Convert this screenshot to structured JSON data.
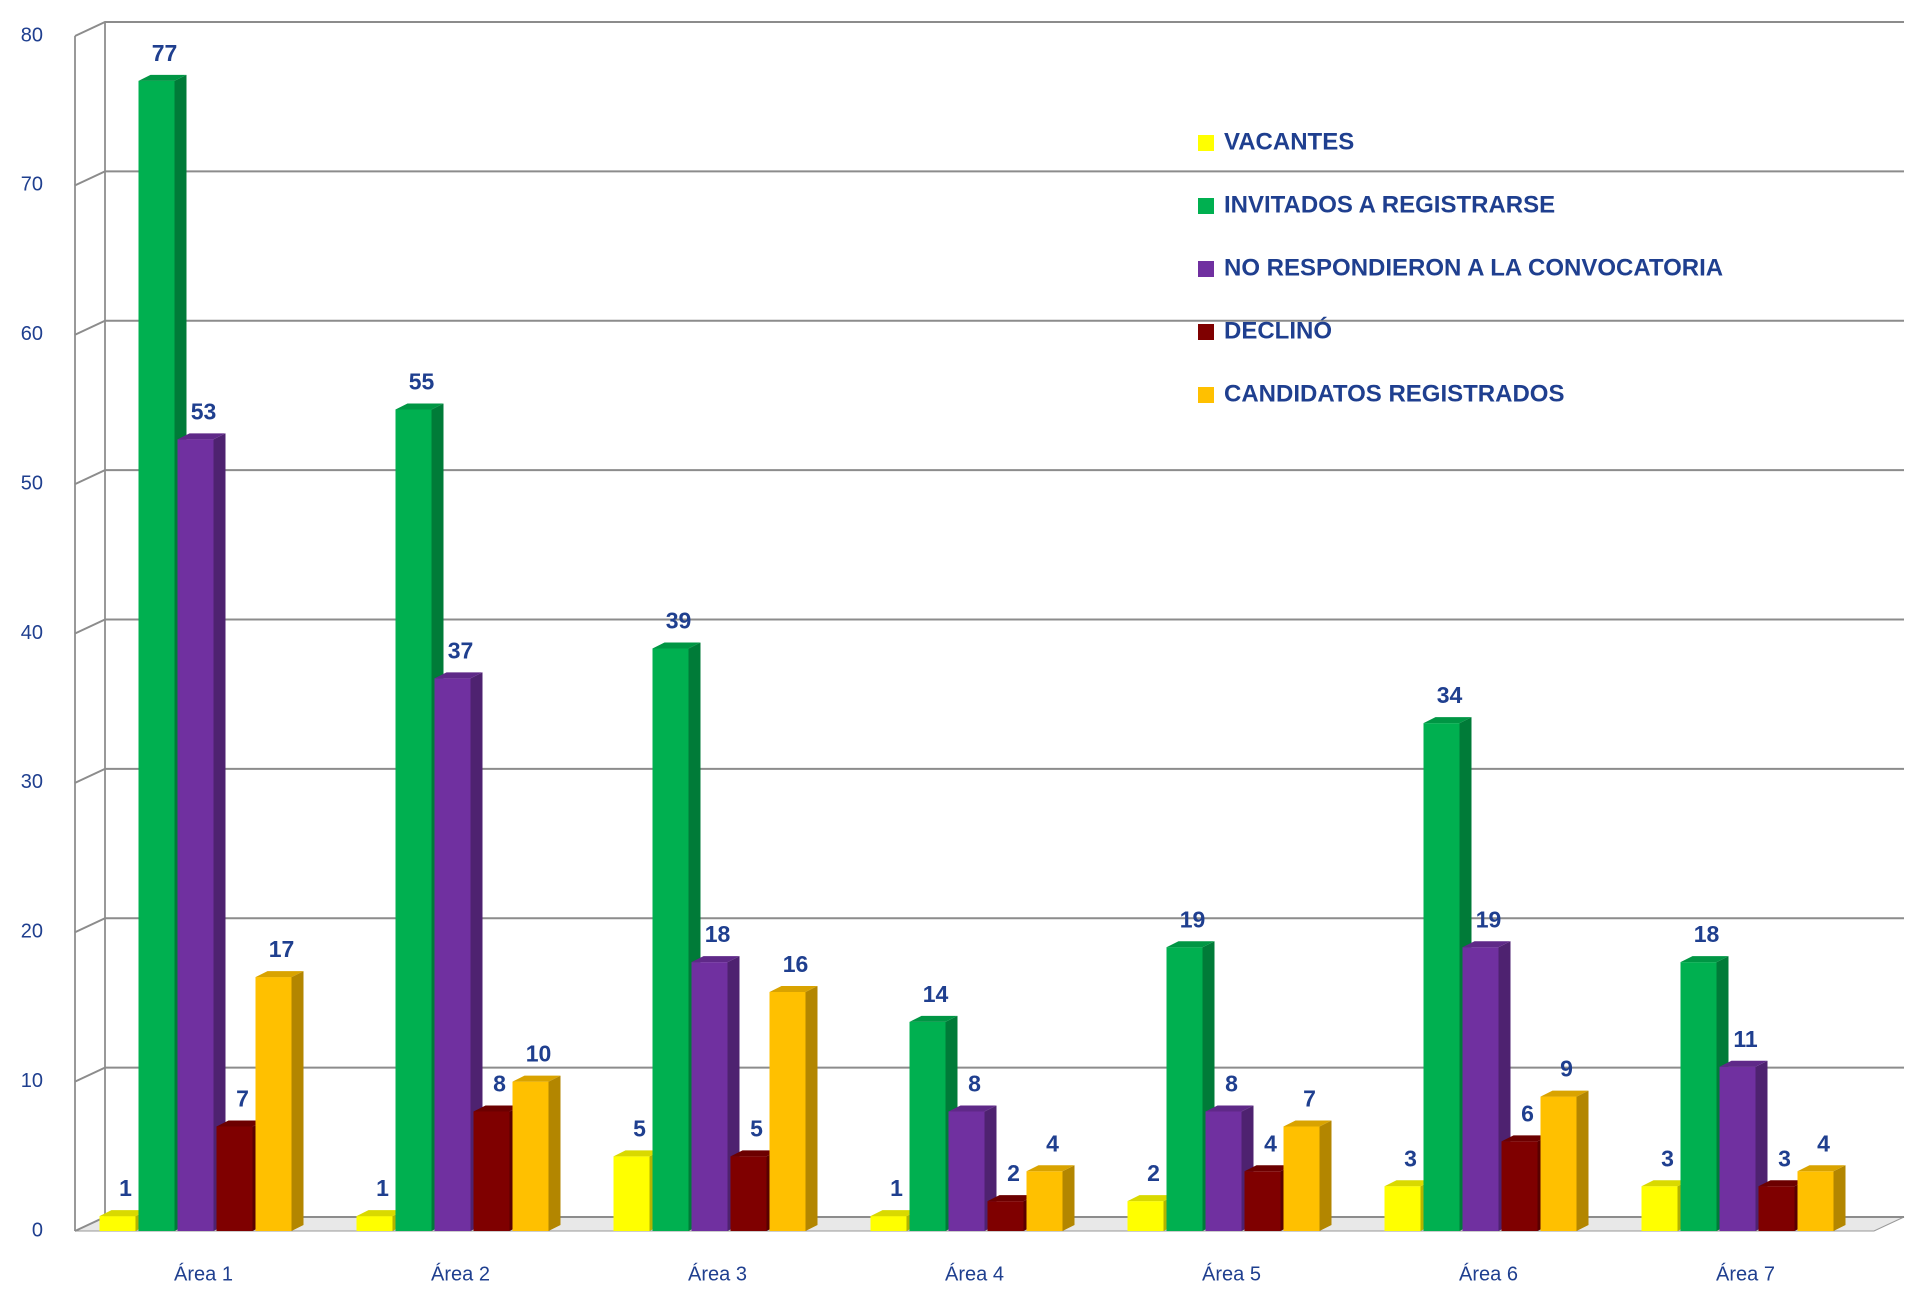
{
  "chart_data": {
    "type": "bar3d",
    "categories": [
      "Área 1",
      "Área 2",
      "Área 3",
      "Área 4",
      "Área 5",
      "Área 6",
      "Área 7"
    ],
    "series": [
      {
        "name": "VACANTES",
        "color": "#ffff00",
        "values": [
          1,
          1,
          5,
          1,
          2,
          3,
          3
        ]
      },
      {
        "name": "INVITADOS A REGISTRARSE",
        "color": "#00b050",
        "values": [
          77,
          55,
          39,
          14,
          19,
          34,
          18
        ]
      },
      {
        "name": "NO RESPONDIERON A LA CONVOCATORIA",
        "color": "#7030a0",
        "values": [
          53,
          37,
          18,
          8,
          8,
          19,
          11
        ]
      },
      {
        "name": "DECLINÓ",
        "color": "#7f0000",
        "values": [
          7,
          8,
          5,
          2,
          4,
          6,
          3
        ]
      },
      {
        "name": "CANDIDATOS REGISTRADOS",
        "color": "#ffc000",
        "values": [
          17,
          10,
          16,
          4,
          7,
          9,
          4
        ]
      }
    ],
    "ylim": [
      0,
      80
    ],
    "yticks": [
      0,
      10,
      20,
      30,
      40,
      50,
      60,
      70,
      80
    ],
    "grid": true,
    "legend": "upper right"
  }
}
